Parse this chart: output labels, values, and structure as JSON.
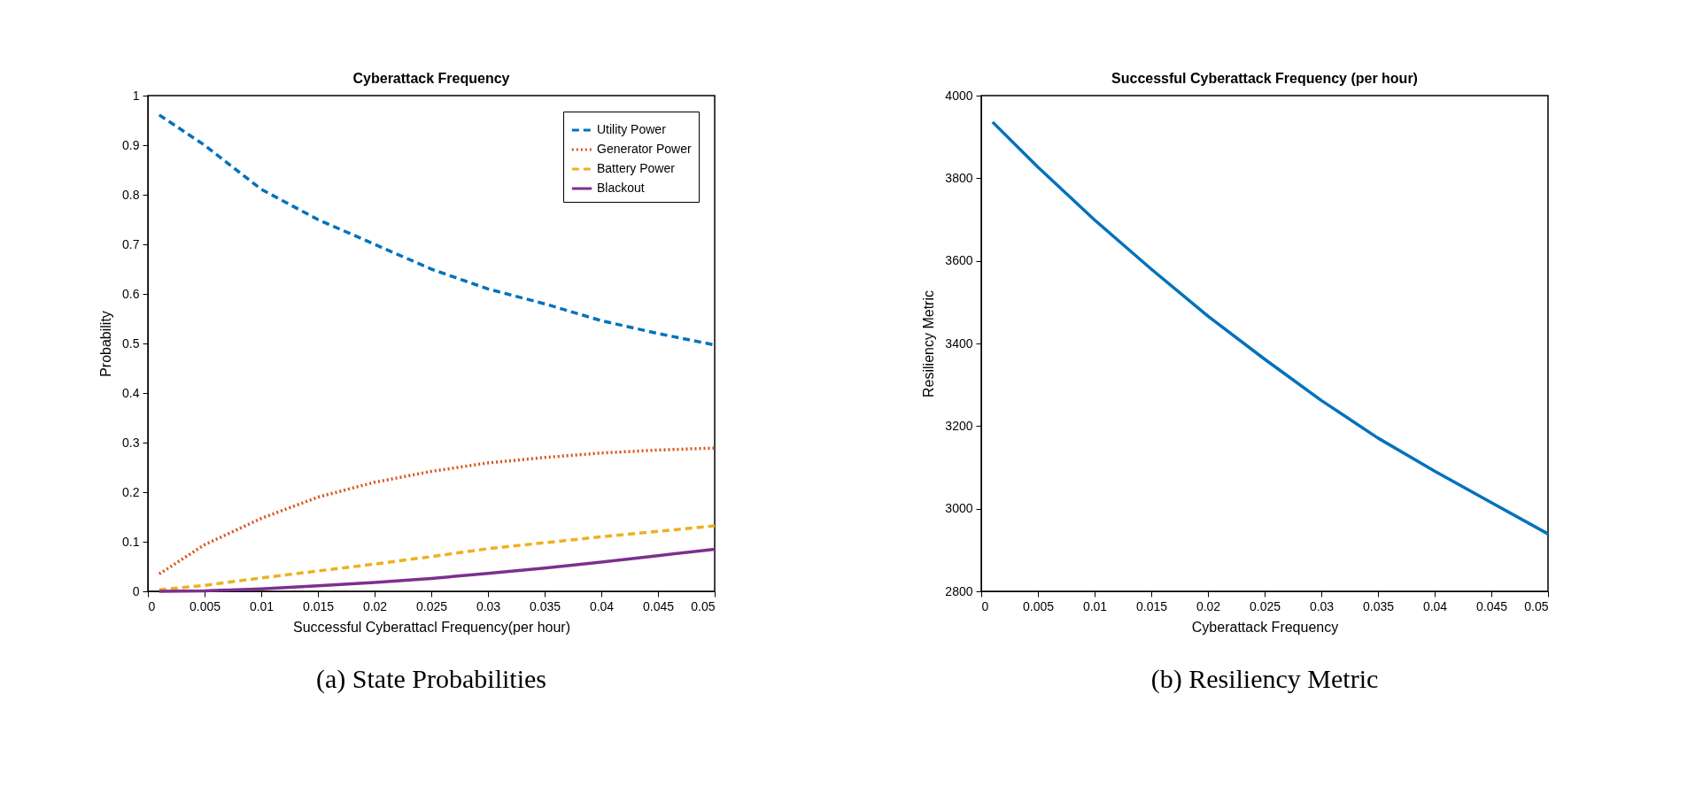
{
  "chart_data": [
    {
      "type": "line",
      "title": "Cyberattack Frequency",
      "xlabel": "Successful Cyberattacl Frequency(per hour)",
      "ylabel": "Probability",
      "x": [
        0.001,
        0.005,
        0.01,
        0.015,
        0.02,
        0.025,
        0.03,
        0.035,
        0.04,
        0.045,
        0.05
      ],
      "series": [
        {
          "name": "Utility Power",
          "color": "#0072bd",
          "line_style": "dashed",
          "values": [
            0.961,
            0.9,
            0.811,
            0.75,
            0.7,
            0.65,
            0.61,
            0.58,
            0.546,
            0.52,
            0.497
          ]
        },
        {
          "name": "Generator Power",
          "color": "#d95319",
          "line_style": "dotted",
          "values": [
            0.035,
            0.094,
            0.147,
            0.19,
            0.22,
            0.242,
            0.259,
            0.27,
            0.279,
            0.285,
            0.289
          ]
        },
        {
          "name": "Battery Power",
          "color": "#edb120",
          "line_style": "dashed",
          "values": [
            0.003,
            0.012,
            0.027,
            0.041,
            0.055,
            0.07,
            0.086,
            0.098,
            0.11,
            0.121,
            0.132
          ]
        },
        {
          "name": "Blackout",
          "color": "#7e2f8e",
          "line_style": "solid",
          "values": [
            0.0,
            0.001,
            0.005,
            0.011,
            0.018,
            0.026,
            0.036,
            0.047,
            0.059,
            0.072,
            0.085
          ]
        }
      ],
      "xlim": [
        0,
        0.05
      ],
      "xticks": [
        0,
        0.005,
        0.01,
        0.015,
        0.02,
        0.025,
        0.03,
        0.035,
        0.04,
        0.045,
        0.05
      ],
      "ylim": [
        0,
        1
      ],
      "yticks": [
        0,
        0.1,
        0.2,
        0.3,
        0.4,
        0.5,
        0.6,
        0.7,
        0.8,
        0.9,
        1
      ],
      "grid": false,
      "legend": "top right",
      "annotations": [
        "(a) State Probabilities"
      ]
    },
    {
      "type": "line",
      "title": "Successful Cyberattack Frequency (per hour)",
      "xlabel": "Cyberattack Frequency",
      "ylabel": "Resiliency Metric",
      "x": [
        0.001,
        0.005,
        0.01,
        0.015,
        0.02,
        0.025,
        0.03,
        0.035,
        0.04,
        0.045,
        0.05
      ],
      "series": [
        {
          "color": "#0072bd",
          "line_style": "solid",
          "values": [
            3936,
            3827,
            3699,
            3580,
            3466,
            3362,
            3262,
            3171,
            3091,
            3015,
            2939
          ]
        }
      ],
      "xlim": [
        0,
        0.05
      ],
      "xticks": [
        0,
        0.005,
        0.01,
        0.015,
        0.02,
        0.025,
        0.03,
        0.035,
        0.04,
        0.045,
        0.05
      ],
      "ylim": [
        2800,
        4000
      ],
      "yticks": [
        2800,
        3000,
        3200,
        3400,
        3600,
        3800,
        4000
      ],
      "grid": false,
      "legend": false,
      "annotations": [
        "(b) Resiliency Metric"
      ]
    }
  ]
}
